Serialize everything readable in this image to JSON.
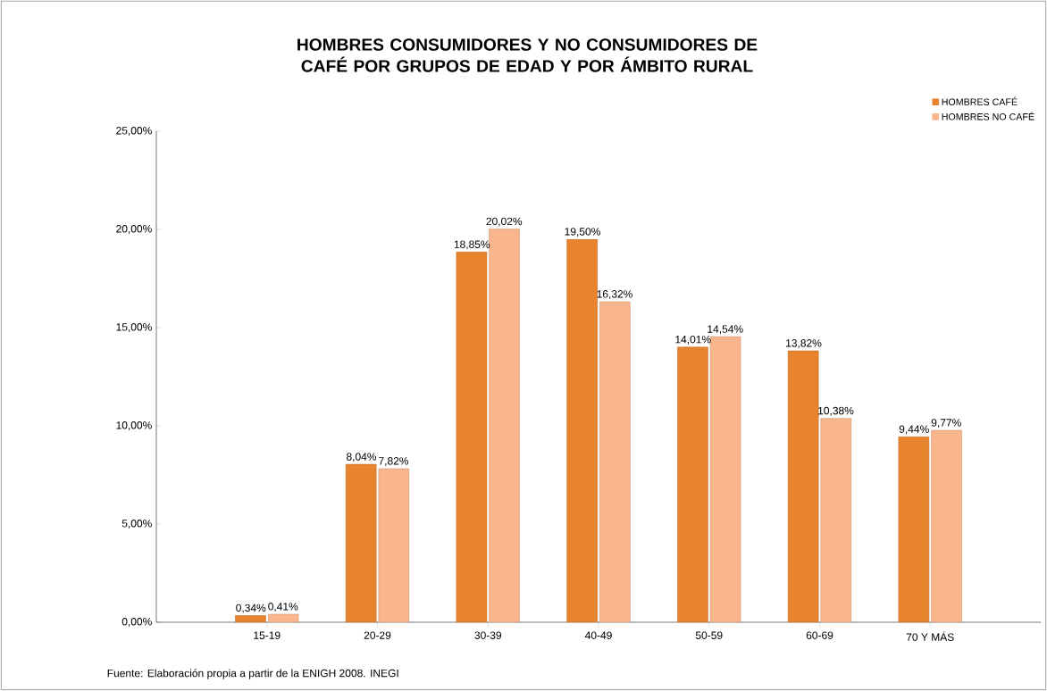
{
  "chart_data": {
    "type": "bar",
    "title": "HOMBRES CONSUMIDORES Y NO CONSUMIDORES DE CAFÉ POR GRUPOS DE EDAD Y POR ÁMBITO RURAL",
    "categories": [
      "15-19",
      "20-29",
      "30-39",
      "40-49",
      "50-59",
      "60-69",
      "70 Y MÁS"
    ],
    "series": [
      {
        "name": "HOMBRES CAFÉ",
        "color": "#e8832e",
        "values": [
          0.34,
          8.04,
          18.85,
          19.5,
          14.01,
          13.82,
          9.44
        ],
        "value_labels": [
          "0,34%",
          "8,04%",
          "18,85%",
          "19,50%",
          "14,01%",
          "13,82%",
          "9,44%"
        ]
      },
      {
        "name": "HOMBRES NO CAFÉ",
        "color": "#f9b68c",
        "values": [
          0.41,
          7.82,
          20.02,
          16.32,
          14.54,
          10.38,
          9.77
        ],
        "value_labels": [
          "0,41%",
          "7,82%",
          "20,02%",
          "16,32%",
          "14,54%",
          "10,38%",
          "9,77%"
        ]
      }
    ],
    "ylim": [
      0,
      25
    ],
    "yticks": [
      {
        "value": 0,
        "label": "0,00%"
      },
      {
        "value": 5,
        "label": "5,00%"
      },
      {
        "value": 10,
        "label": "10,00%"
      },
      {
        "value": 15,
        "label": "15,00%"
      },
      {
        "value": 20,
        "label": "20,00%"
      },
      {
        "value": 25,
        "label": "25,00%"
      }
    ],
    "legend": "top right",
    "annotations": [
      "Fuente: Elaboración propia a partir de la ENIGH 2008. INEGI"
    ]
  }
}
